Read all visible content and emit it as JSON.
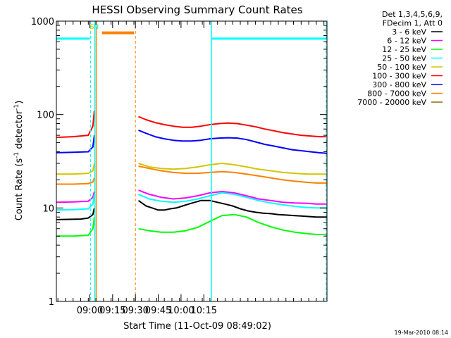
{
  "chart_data": {
    "type": "line",
    "title": "HESSI Observing Summary Count Rates",
    "xlabel": "Start Time (11-Oct-09 08:49:02)",
    "ylabel_prefix": "Count Rate (s",
    "ylabel_sup1": "-1",
    "ylabel_mid": " detector",
    "ylabel_sup2": "-1",
    "ylabel_suffix": ")",
    "y_scale": "log",
    "ylim": [
      1,
      1000
    ],
    "xlim_min": [
      49,
      227
    ],
    "x_ticks": [
      {
        "min": 71,
        "label": "09:00"
      },
      {
        "min": 86,
        "label": "09:15"
      },
      {
        "min": 101,
        "label": "09:30"
      },
      {
        "min": 116,
        "label": "09:45"
      },
      {
        "min": 131,
        "label": "10:00"
      },
      {
        "min": 146,
        "label": "10:15"
      }
    ],
    "y_ticks": [
      {
        "value": 1,
        "label": "1"
      },
      {
        "value": 10,
        "label": "10"
      },
      {
        "value": 100,
        "label": "100"
      },
      {
        "value": 1000,
        "label": "1000"
      }
    ],
    "legend": {
      "header": [
        "Det 1,3,4,5,6,9,",
        "FDecim 1, Att 0"
      ],
      "entries": [
        {
          "label": "3 - 6 keV",
          "color": "#000000"
        },
        {
          "label": "6 - 12 keV",
          "color": "#ff00ff"
        },
        {
          "label": "12 - 25 keV",
          "color": "#00ff00"
        },
        {
          "label": "25 - 50 keV",
          "color": "#00ffff"
        },
        {
          "label": "50 - 100 keV",
          "color": "#d4c400"
        },
        {
          "label": "100 - 300 keV",
          "color": "#ff0000"
        },
        {
          "label": "300 - 800 keV",
          "color": "#0000ff"
        },
        {
          "label": "800 - 7000 keV",
          "color": "#ff8000"
        },
        {
          "label": "7000 - 20000 keV",
          "color": "#8b6a00"
        }
      ]
    },
    "series": [
      {
        "name": "3 - 6 keV",
        "color": "#000000",
        "segments": [
          {
            "x": [
              49,
              65,
              70,
              73,
              74
            ],
            "y": [
              7.5,
              7.6,
              7.8,
              8.5,
              10
            ]
          },
          {
            "x": [
              103,
              108,
              112,
              116,
              120,
              124,
              128,
              132,
              136,
              140,
              144,
              150,
              155,
              160,
              165,
              170,
              175,
              180,
              185,
              190,
              195,
              200,
              205,
              210,
              215,
              220,
              227
            ],
            "y": [
              12,
              10.5,
              10,
              9.5,
              9.5,
              9.8,
              10,
              10.5,
              11,
              11.5,
              12,
              12,
              11.5,
              11,
              10.5,
              9.8,
              9.3,
              9.0,
              8.8,
              8.7,
              8.5,
              8.4,
              8.3,
              8.2,
              8.1,
              8.0,
              8.0
            ]
          }
        ]
      },
      {
        "name": "6 - 12 keV",
        "color": "#ff00ff",
        "segments": [
          {
            "x": [
              49,
              60,
              70,
              73,
              74
            ],
            "y": [
              11.5,
              11.6,
              11.8,
              13,
              15
            ]
          },
          {
            "x": [
              103,
              110,
              118,
              126,
              134,
              142,
              150,
              158,
              166,
              174,
              182,
              190,
              198,
              206,
              214,
              220,
              227
            ],
            "y": [
              15.5,
              14,
              13,
              12.5,
              12.8,
              13.5,
              14.5,
              15,
              14.5,
              13.5,
              12.5,
              12,
              11.5,
              11.3,
              11.2,
              11,
              11
            ]
          }
        ]
      },
      {
        "name": "12 - 25 keV",
        "color": "#00ff00",
        "segments": [
          {
            "x": [
              49,
              60,
              70,
              73,
              74
            ],
            "y": [
              5,
              5,
              5.1,
              6,
              8
            ]
          },
          {
            "x": [
              103,
              110,
              118,
              126,
              134,
              142,
              150,
              158,
              166,
              174,
              182,
              190,
              198,
              206,
              214,
              220,
              227
            ],
            "y": [
              6,
              5.7,
              5.5,
              5.5,
              5.7,
              6.2,
              7.2,
              8.3,
              8.5,
              8,
              7,
              6.3,
              5.8,
              5.5,
              5.3,
              5.2,
              5.2
            ]
          }
        ]
      },
      {
        "name": "25 - 50 keV",
        "color": "#00ffff",
        "segments": [
          {
            "x": [
              49,
              60,
              70,
              73,
              74
            ],
            "y": [
              9.5,
              9.6,
              9.8,
              11,
              14
            ]
          },
          {
            "x": [
              103,
              110,
              118,
              126,
              134,
              142,
              150,
              158,
              166,
              174,
              182,
              190,
              198,
              206,
              214,
              220,
              227
            ],
            "y": [
              14,
              12.5,
              11.8,
              11.5,
              11.8,
              12.5,
              13.5,
              14.5,
              14,
              13,
              12,
              11.3,
              10.8,
              10.4,
              10.1,
              10,
              10
            ]
          }
        ]
      },
      {
        "name": "50 - 100 keV",
        "color": "#d4c400",
        "segments": [
          {
            "x": [
              49,
              60,
              70,
              73,
              74
            ],
            "y": [
              23,
              23,
              23.5,
              25,
              30
            ]
          },
          {
            "x": [
              103,
              110,
              118,
              126,
              134,
              142,
              150,
              158,
              166,
              174,
              182,
              190,
              198,
              206,
              214,
              220,
              227
            ],
            "y": [
              30,
              27.5,
              26.5,
              26,
              26.5,
              27.5,
              29,
              30,
              29,
              27.5,
              26,
              25,
              24,
              23.5,
              23,
              23,
              23
            ]
          }
        ]
      },
      {
        "name": "100 - 300 keV",
        "color": "#ff0000",
        "segments": [
          {
            "x": [
              49,
              60,
              70,
              73,
              74
            ],
            "y": [
              57,
              58,
              60,
              75,
              110
            ]
          },
          {
            "x": [
              103,
              108,
              114,
              120,
              126,
              132,
              138,
              144,
              150,
              156,
              162,
              168,
              174,
              180,
              186,
              192,
              198,
              204,
              210,
              216,
              222,
              227
            ],
            "y": [
              95,
              88,
              82,
              78,
              75,
              73,
              73,
              75,
              78,
              80,
              81,
              80,
              77,
              74,
              70,
              67,
              64,
              62,
              60,
              59,
              58,
              58
            ]
          }
        ]
      },
      {
        "name": "300 - 800 keV",
        "color": "#0000ff",
        "segments": [
          {
            "x": [
              49,
              60,
              70,
              73,
              74
            ],
            "y": [
              39,
              39.5,
              40,
              45,
              60
            ]
          },
          {
            "x": [
              103,
              108,
              114,
              120,
              126,
              132,
              138,
              144,
              150,
              156,
              162,
              168,
              174,
              180,
              186,
              192,
              198,
              204,
              210,
              216,
              222,
              227
            ],
            "y": [
              68,
              63,
              58,
              55,
              53,
              52,
              52,
              53,
              55,
              56,
              56.5,
              56,
              54,
              51,
              48,
              46,
              44,
              42,
              41,
              40,
              39,
              38.5
            ]
          }
        ]
      },
      {
        "name": "800 - 7000 keV",
        "color": "#ff8000",
        "segments": [
          {
            "x": [
              49,
              60,
              70,
              73,
              74
            ],
            "y": [
              18,
              18,
              18.2,
              19,
              21
            ]
          },
          {
            "x": [
              103,
              110,
              118,
              126,
              134,
              142,
              150,
              158,
              166,
              174,
              182,
              190,
              198,
              206,
              214,
              220,
              227
            ],
            "y": [
              28,
              26.5,
              25,
              24,
              23.5,
              23.5,
              24,
              24.5,
              24,
              23,
              22,
              21,
              20,
              19.3,
              18.8,
              18.5,
              18.5
            ]
          }
        ]
      }
    ],
    "attenuator_segments": [
      {
        "x": [
          49,
          71
        ],
        "y": 650
      },
      {
        "x": [
          151,
          227
        ],
        "y": 650
      }
    ],
    "orange_block": {
      "x": [
        79,
        100
      ],
      "y": 750
    },
    "event_lines": [
      {
        "min": 71.5,
        "color": "#00ffff",
        "style": "dashed"
      },
      {
        "min": 101,
        "color": "#ff8000",
        "style": "dashed"
      },
      {
        "min": 226.5,
        "color": "#00ffff",
        "style": "dashed"
      }
    ],
    "solid_lines": [
      {
        "min": 74.3,
        "color": "#00ffff"
      },
      {
        "min": 151,
        "color": "#00ffff"
      },
      {
        "min": 75.2,
        "color": "#ff8000"
      }
    ],
    "markers": [
      {
        "min": 72.4,
        "label": "S",
        "color": "#d4c400"
      },
      {
        "min": 75.2,
        "label": "N",
        "color": "#00ffff"
      }
    ],
    "timestamp": "19-Mar-2010 08:14"
  }
}
